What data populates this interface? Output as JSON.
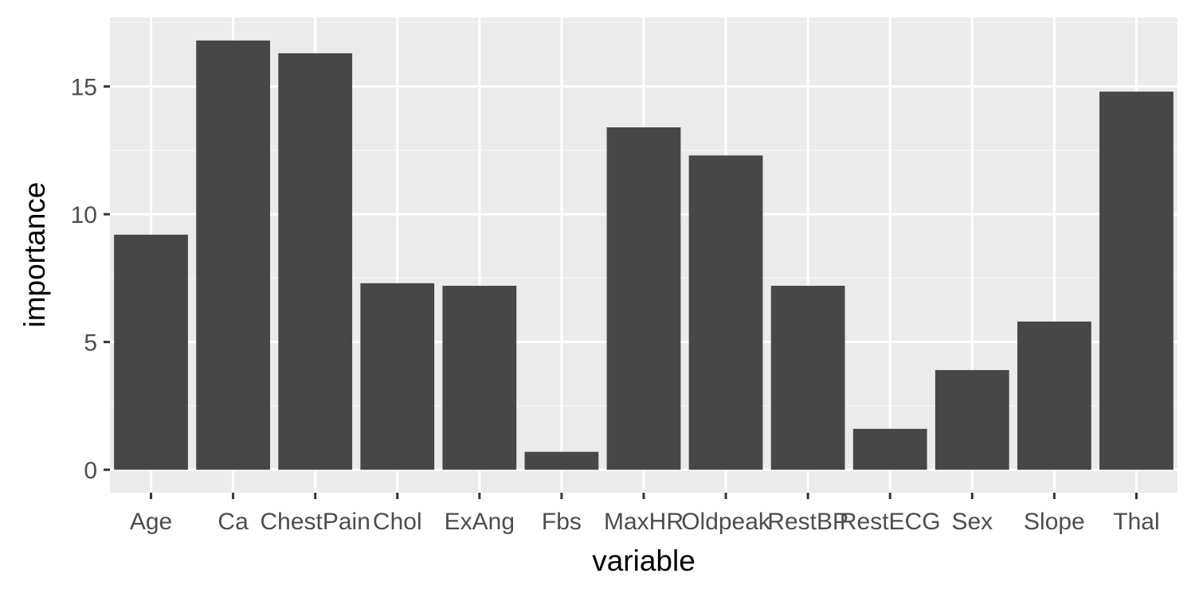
{
  "chart_data": {
    "type": "bar",
    "xlabel": "variable",
    "ylabel": "importance",
    "categories": [
      "Age",
      "Ca",
      "ChestPain",
      "Chol",
      "ExAng",
      "Fbs",
      "MaxHR",
      "Oldpeak",
      "RestBP",
      "RestECG",
      "Sex",
      "Slope",
      "Thal"
    ],
    "values": [
      9.2,
      16.8,
      16.3,
      7.3,
      7.2,
      0.7,
      13.4,
      12.3,
      7.2,
      1.6,
      3.9,
      5.8,
      14.8
    ],
    "ylim": [
      -0.9,
      17.7
    ],
    "yticks": [
      0,
      5,
      10,
      15
    ],
    "grid": true,
    "legend": "none",
    "colors": {
      "bar": "#474747",
      "panel": "#ebebeb",
      "grid_major": "#ffffff",
      "grid_minor": "#f5f5f5",
      "tick": "#333333"
    }
  }
}
